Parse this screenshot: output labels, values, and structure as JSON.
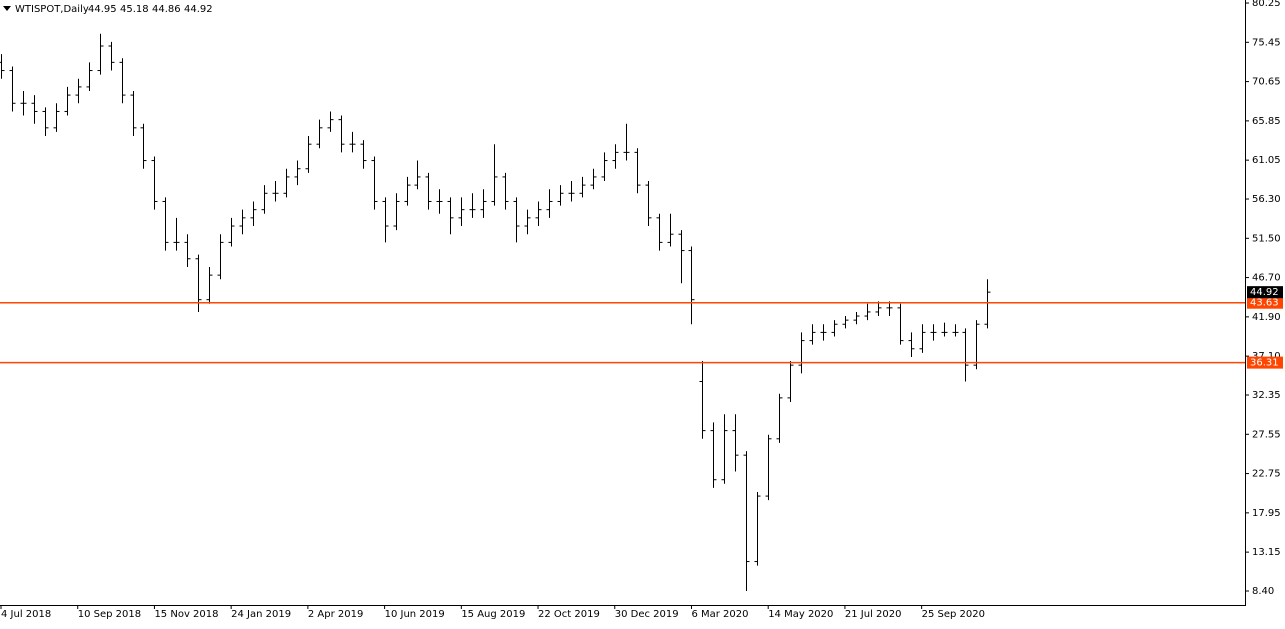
{
  "chart_data": {
    "type": "ohlc",
    "title": "WTISPOT,Daily",
    "quote": [
      44.95,
      45.18,
      44.86,
      44.92
    ],
    "ylim": [
      6.69,
      80.62
    ],
    "yticks": [
      80.25,
      75.45,
      70.65,
      65.85,
      61.05,
      {
        "value": 56.3,
        "label": "56.30"
      },
      {
        "value": 51.5,
        "label": "51.50"
      },
      {
        "value": 46.7,
        "label": "46.70"
      },
      {
        "value": 41.9,
        "label": "41.90"
      },
      {
        "value": 37.1,
        "label": "37.10"
      },
      32.35,
      27.55,
      22.75,
      17.95,
      13.15,
      {
        "value": 8.4,
        "label": "8.40"
      }
    ],
    "color": "#000000",
    "categories": [
      "4 Jul 2018",
      null,
      null,
      null,
      null,
      null,
      null,
      "10 Sep 2018",
      null,
      null,
      null,
      null,
      null,
      null,
      "15 Nov 2018",
      null,
      null,
      null,
      null,
      null,
      null,
      "24 Jan 2019",
      null,
      null,
      null,
      null,
      null,
      null,
      "2 Apr 2019",
      null,
      null,
      null,
      null,
      null,
      null,
      "10 Jun 2019",
      null,
      null,
      null,
      null,
      null,
      null,
      "15 Aug 2019",
      null,
      null,
      null,
      null,
      null,
      null,
      "22 Oct 2019",
      null,
      null,
      null,
      null,
      null,
      null,
      "30 Dec 2019",
      null,
      null,
      null,
      null,
      null,
      null,
      "6 Mar 2020",
      null,
      null,
      null,
      null,
      null,
      null,
      "14 May 2020",
      null,
      null,
      null,
      null,
      null,
      null,
      "21 Jul 2020",
      null,
      null,
      null,
      null,
      null,
      null,
      "25 Sep 2020",
      null,
      null,
      null,
      null,
      null,
      null
    ],
    "ohlc": [
      [
        73,
        74,
        71,
        72
      ],
      [
        72,
        72.5,
        67,
        68
      ],
      [
        68,
        69.5,
        66.5,
        68
      ],
      [
        68,
        69,
        65.5,
        67
      ],
      [
        67,
        67.5,
        64,
        65
      ],
      [
        65,
        68,
        64.5,
        67
      ],
      [
        67,
        70,
        66.5,
        69
      ],
      [
        69,
        71,
        68,
        70
      ],
      [
        70,
        73,
        69.5,
        72
      ],
      [
        72,
        76.5,
        71.5,
        75
      ],
      [
        75,
        75.5,
        72,
        73
      ],
      [
        73,
        73.5,
        68,
        69
      ],
      [
        69,
        69.5,
        64,
        65
      ],
      [
        65,
        65.5,
        60,
        61
      ],
      [
        61,
        61.5,
        55,
        56
      ],
      [
        56,
        56.5,
        50,
        51
      ],
      [
        51,
        54,
        50,
        51
      ],
      [
        51,
        52,
        48,
        49
      ],
      [
        49,
        49.5,
        42.5,
        44
      ],
      [
        44,
        48,
        43.5,
        47
      ],
      [
        47,
        52,
        46.5,
        51
      ],
      [
        51,
        54,
        50.5,
        53
      ],
      [
        53,
        55,
        52,
        54
      ],
      [
        54,
        56,
        53,
        55
      ],
      [
        55,
        58,
        54.5,
        57
      ],
      [
        57,
        58.5,
        56,
        57
      ],
      [
        57,
        60,
        56.5,
        59
      ],
      [
        59,
        61,
        58,
        60
      ],
      [
        60,
        64,
        59.5,
        63
      ],
      [
        63,
        66,
        62.5,
        65
      ],
      [
        65,
        67,
        64.5,
        66
      ],
      [
        66,
        66.5,
        62,
        63
      ],
      [
        63,
        64.5,
        62,
        63
      ],
      [
        63,
        63.5,
        60,
        61
      ],
      [
        61,
        61.5,
        55,
        56
      ],
      [
        56,
        56.5,
        51,
        53
      ],
      [
        53,
        57,
        52.5,
        56
      ],
      [
        56,
        59,
        55.5,
        58
      ],
      [
        58,
        61,
        57.5,
        59
      ],
      [
        59,
        59.5,
        55,
        56
      ],
      [
        56,
        57.5,
        54.5,
        56
      ],
      [
        56,
        56.5,
        52,
        54
      ],
      [
        54,
        56.5,
        53,
        55
      ],
      [
        55,
        57,
        54,
        55
      ],
      [
        55,
        57.5,
        54,
        56
      ],
      [
        56,
        63,
        55.5,
        59
      ],
      [
        59,
        59.5,
        55,
        56
      ],
      [
        56,
        56.5,
        51,
        53
      ],
      [
        53,
        55,
        52,
        54
      ],
      [
        54,
        56,
        53,
        55
      ],
      [
        55,
        57.5,
        54,
        56
      ],
      [
        56,
        58,
        55.5,
        57
      ],
      [
        57,
        58.5,
        56,
        57
      ],
      [
        57,
        59,
        56.5,
        58
      ],
      [
        58,
        60,
        57.5,
        59
      ],
      [
        59,
        62,
        58.5,
        61
      ],
      [
        61,
        63,
        60,
        62
      ],
      [
        62,
        65.5,
        61,
        62
      ],
      [
        62,
        62.5,
        57,
        58
      ],
      [
        58,
        58.5,
        53,
        54
      ],
      [
        54,
        54.5,
        50,
        51
      ],
      [
        51,
        54.5,
        50.5,
        52
      ],
      [
        52,
        52.5,
        46,
        50
      ],
      [
        50,
        50.5,
        41,
        44
      ],
      [
        34,
        36.5,
        27,
        28
      ],
      [
        28,
        29,
        21,
        22
      ],
      [
        22,
        30,
        21.5,
        28
      ],
      [
        28,
        30,
        23,
        25
      ],
      [
        25,
        25.5,
        8.4,
        12
      ],
      [
        12,
        20.5,
        11.5,
        20
      ],
      [
        20,
        27.5,
        19.5,
        27
      ],
      [
        27,
        32.5,
        26.5,
        32
      ],
      [
        32,
        36.5,
        31.5,
        36
      ],
      [
        36,
        40,
        35,
        39
      ],
      [
        39,
        41,
        38.5,
        40
      ],
      [
        40,
        41,
        39,
        40
      ],
      [
        40,
        41.5,
        39.5,
        41
      ],
      [
        41,
        42,
        40.5,
        41.5
      ],
      [
        41.5,
        42.5,
        41,
        42
      ],
      [
        42,
        43.5,
        41.5,
        42.5
      ],
      [
        42.5,
        43.8,
        42,
        43
      ],
      [
        43,
        43.8,
        42,
        43
      ],
      [
        43,
        43.5,
        38.5,
        39
      ],
      [
        39,
        40,
        37,
        38
      ],
      [
        38,
        41,
        37.5,
        40
      ],
      [
        40,
        41,
        39,
        40
      ],
      [
        40,
        41.2,
        39.5,
        40
      ],
      [
        40,
        41,
        39.5,
        40
      ],
      [
        40,
        40.5,
        34,
        36
      ],
      [
        36,
        41.5,
        35.5,
        41
      ],
      [
        41,
        46.5,
        40.5,
        44.92
      ]
    ],
    "levels": [
      {
        "value": 43.63,
        "color": "#ff4500"
      },
      {
        "value": 36.31,
        "color": "#ff4500"
      }
    ]
  }
}
